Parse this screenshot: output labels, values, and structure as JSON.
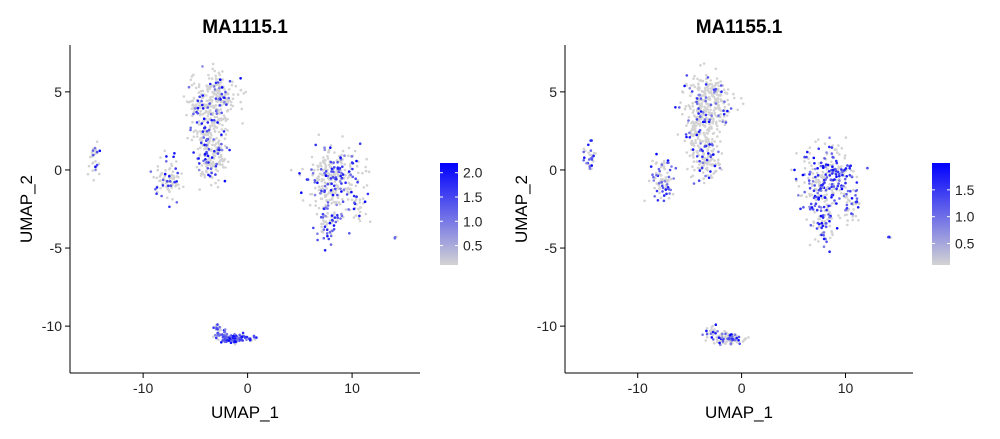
{
  "colors": {
    "low": "#d3d3d3",
    "high": "#0000ff",
    "axis": "#000000"
  },
  "chart_data": [
    {
      "type": "scatter",
      "title": "MA1115.1",
      "xlabel": "UMAP_1",
      "ylabel": "UMAP_2",
      "xlim": [
        -17,
        16.5
      ],
      "ylim": [
        -13,
        8
      ],
      "xticks": [
        -10,
        0,
        10
      ],
      "yticks": [
        5,
        0,
        -5,
        -10
      ],
      "xtick_labels": [
        "-10",
        "0",
        "10"
      ],
      "ytick_labels": [
        "5",
        "0",
        "-5",
        "-10"
      ],
      "legend": {
        "placement": "right",
        "min": 0.1,
        "max": 2.2,
        "ticks": [
          0.5,
          1.0,
          1.5,
          2.0
        ],
        "tick_labels": [
          "0.5",
          "1.0",
          "1.5",
          "2.0"
        ]
      },
      "clusters": [
        {
          "cx": -3.2,
          "cy": 4.6,
          "sx": 1.7,
          "sy": 1.0,
          "n": 230,
          "expr": 0.15
        },
        {
          "cx": -3.8,
          "cy": 2.6,
          "sx": 1.1,
          "sy": 1.2,
          "n": 160,
          "expr": 0.15
        },
        {
          "cx": -3.4,
          "cy": 0.6,
          "sx": 1.0,
          "sy": 0.9,
          "n": 110,
          "expr": 0.2
        },
        {
          "cx": -7.6,
          "cy": -0.6,
          "sx": 0.8,
          "sy": 0.9,
          "n": 90,
          "expr": 0.25
        },
        {
          "cx": -14.6,
          "cy": 0.8,
          "sx": 0.35,
          "sy": 0.7,
          "n": 30,
          "expr": 0.15
        },
        {
          "cx": 8.3,
          "cy": -0.6,
          "sx": 1.7,
          "sy": 1.4,
          "n": 300,
          "expr": 0.3
        },
        {
          "cx": 7.8,
          "cy": -3.4,
          "sx": 0.8,
          "sy": 0.9,
          "n": 70,
          "expr": 0.35
        },
        {
          "cx": 10.7,
          "cy": -2.4,
          "sx": 0.5,
          "sy": 0.6,
          "n": 25,
          "expr": 0.3
        },
        {
          "cx": 14.2,
          "cy": -4.3,
          "sx": 0.12,
          "sy": 0.1,
          "n": 4,
          "expr": 0.6
        },
        {
          "cx": -1.2,
          "cy": -10.8,
          "sx": 1.1,
          "sy": 0.22,
          "n": 110,
          "expr": 0.85
        },
        {
          "cx": -2.8,
          "cy": -10.3,
          "sx": 0.35,
          "sy": 0.3,
          "n": 20,
          "expr": 0.8
        }
      ]
    },
    {
      "type": "scatter",
      "title": "MA1155.1",
      "xlabel": "UMAP_1",
      "ylabel": "UMAP_2",
      "xlim": [
        -17,
        16.5
      ],
      "ylim": [
        -13,
        8
      ],
      "xticks": [
        -10,
        0,
        10
      ],
      "yticks": [
        5,
        0,
        -5,
        -10
      ],
      "xtick_labels": [
        "-10",
        "0",
        "10"
      ],
      "ytick_labels": [
        "5",
        "0",
        "-5",
        "-10"
      ],
      "legend": {
        "placement": "right",
        "min": 0.1,
        "max": 2.0,
        "ticks": [
          0.5,
          1.0,
          1.5
        ],
        "tick_labels": [
          "0.5",
          "1.0",
          "1.5"
        ]
      },
      "clusters": [
        {
          "cx": -3.2,
          "cy": 4.6,
          "sx": 1.7,
          "sy": 1.0,
          "n": 230,
          "expr": 0.15
        },
        {
          "cx": -3.8,
          "cy": 2.6,
          "sx": 1.1,
          "sy": 1.2,
          "n": 160,
          "expr": 0.12
        },
        {
          "cx": -3.4,
          "cy": 0.6,
          "sx": 1.0,
          "sy": 0.9,
          "n": 110,
          "expr": 0.2
        },
        {
          "cx": -7.6,
          "cy": -0.6,
          "sx": 0.8,
          "sy": 0.9,
          "n": 90,
          "expr": 0.4
        },
        {
          "cx": -14.6,
          "cy": 0.8,
          "sx": 0.35,
          "sy": 0.7,
          "n": 30,
          "expr": 0.55
        },
        {
          "cx": 8.3,
          "cy": -0.6,
          "sx": 1.7,
          "sy": 1.4,
          "n": 300,
          "expr": 0.5
        },
        {
          "cx": 7.8,
          "cy": -3.4,
          "sx": 0.8,
          "sy": 0.9,
          "n": 70,
          "expr": 0.5
        },
        {
          "cx": 10.7,
          "cy": -2.4,
          "sx": 0.5,
          "sy": 0.6,
          "n": 25,
          "expr": 0.5
        },
        {
          "cx": 14.2,
          "cy": -4.3,
          "sx": 0.12,
          "sy": 0.1,
          "n": 4,
          "expr": 0.7
        },
        {
          "cx": -1.2,
          "cy": -10.8,
          "sx": 1.1,
          "sy": 0.22,
          "n": 110,
          "expr": 0.3
        },
        {
          "cx": -2.8,
          "cy": -10.3,
          "sx": 0.35,
          "sy": 0.3,
          "n": 20,
          "expr": 0.3
        }
      ]
    }
  ]
}
